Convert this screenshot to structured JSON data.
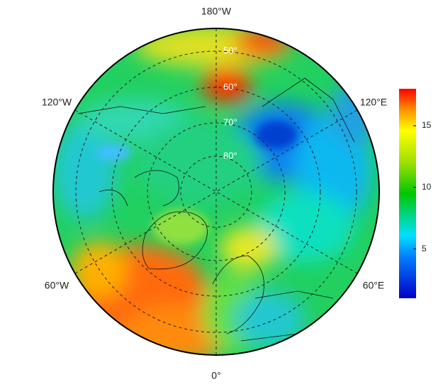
{
  "map": {
    "longitude_labels": [
      "180°W",
      "120°W",
      "120°E",
      "60°W",
      "60°E",
      "0°"
    ],
    "latitude_labels": [
      "50°",
      "60°",
      "70°",
      "80°"
    ],
    "colorbar": {
      "range": [
        1,
        18
      ],
      "ticks": [
        5,
        10,
        15
      ]
    }
  }
}
